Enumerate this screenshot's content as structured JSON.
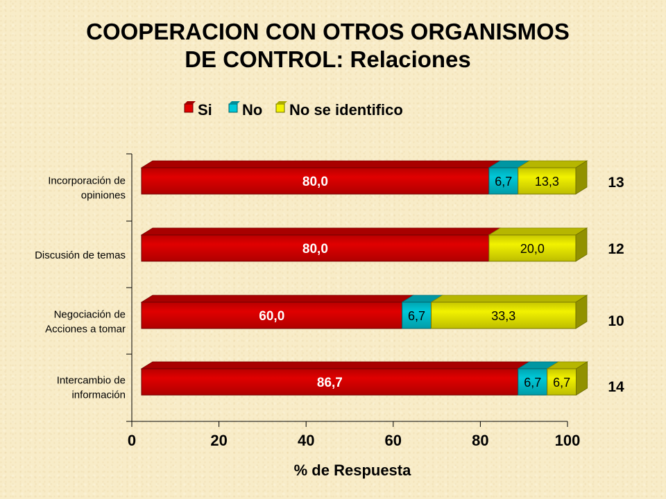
{
  "title_lines": [
    "COOPERACION CON OTROS ORGANISMOS",
    "DE CONTROL: Relaciones"
  ],
  "colors": {
    "si": "#e00000",
    "no": "#00c8d8",
    "no_se_identifico": "#f2f200",
    "background": "#f8ecc8"
  },
  "chart_data": {
    "type": "bar",
    "orientation": "horizontal",
    "stacked": true,
    "categories": [
      [
        "Incorporación de",
        "opiniones"
      ],
      [
        "Discusión de temas"
      ],
      [
        "Negociación de",
        "Acciones a tomar"
      ],
      [
        "Intercambio de",
        "información"
      ]
    ],
    "series": [
      {
        "name": "Si",
        "values": [
          80.0,
          80.0,
          60.0,
          86.7
        ],
        "labels": [
          "80,0",
          "80,0",
          "60,0",
          "86,7"
        ]
      },
      {
        "name": "No",
        "values": [
          6.7,
          0,
          6.7,
          6.7
        ],
        "labels": [
          "6,7",
          "",
          "6,7",
          "6,7"
        ]
      },
      {
        "name": "No se identifico",
        "values": [
          13.3,
          20.0,
          33.3,
          6.7
        ],
        "labels": [
          "13,3",
          "20,0",
          "33,3",
          "6,7"
        ]
      }
    ],
    "counts": [
      "13",
      "12",
      "10",
      "14"
    ],
    "xlabel": "% de Respuesta",
    "ylabel": "",
    "xlim": [
      0,
      100
    ],
    "xticks": [
      "0",
      "20",
      "40",
      "60",
      "80",
      "100"
    ],
    "legend_position": "top",
    "grid": false
  }
}
